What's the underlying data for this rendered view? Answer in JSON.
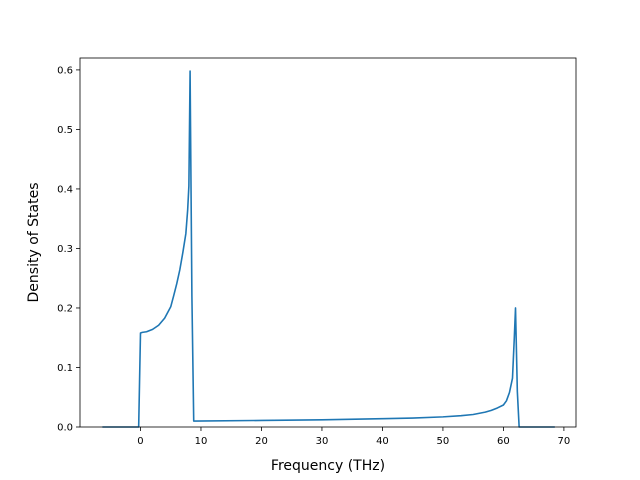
{
  "chart_data": {
    "type": "line",
    "title": "",
    "xlabel": "Frequency (THz)",
    "ylabel": "Density of States",
    "xlim": [
      -10.0,
      72.0
    ],
    "ylim": [
      0.0,
      0.62
    ],
    "xticks": [
      0,
      10,
      20,
      30,
      40,
      50,
      60,
      70
    ],
    "xtick_labels": [
      "0",
      "10",
      "20",
      "30",
      "40",
      "50",
      "60",
      "70"
    ],
    "yticks": [
      0.0,
      0.1,
      0.2,
      0.3,
      0.4,
      0.5,
      0.6
    ],
    "ytick_labels": [
      "0.0",
      "0.1",
      "0.2",
      "0.3",
      "0.4",
      "0.5",
      "0.6"
    ],
    "grid": false,
    "legend": "none",
    "series": [
      {
        "color": "#1f77b4",
        "x": [
          -6.3,
          -0.3,
          0.0,
          0.3,
          1.0,
          2.0,
          3.0,
          4.0,
          5.0,
          5.5,
          6.0,
          6.5,
          7.0,
          7.5,
          7.8,
          8.0,
          8.2,
          8.5,
          8.8,
          9.0,
          20.0,
          30.0,
          40.0,
          45.0,
          50.0,
          53.0,
          55.0,
          57.0,
          58.0,
          59.0,
          60.0,
          60.5,
          61.0,
          61.5,
          61.8,
          62.0,
          62.3,
          62.6,
          68.5
        ],
        "y": [
          0.0,
          0.0,
          0.158,
          0.159,
          0.16,
          0.164,
          0.171,
          0.183,
          0.202,
          0.221,
          0.241,
          0.264,
          0.293,
          0.325,
          0.365,
          0.405,
          0.598,
          0.22,
          0.01,
          0.01,
          0.011,
          0.012,
          0.014,
          0.015,
          0.017,
          0.019,
          0.021,
          0.025,
          0.028,
          0.032,
          0.037,
          0.044,
          0.058,
          0.082,
          0.15,
          0.2,
          0.06,
          0.0,
          0.0
        ]
      }
    ]
  }
}
